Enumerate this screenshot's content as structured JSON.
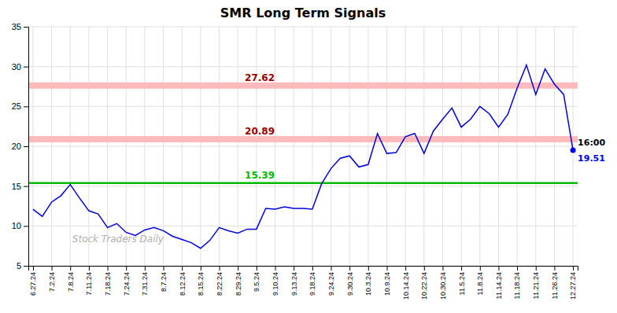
{
  "chart_data": {
    "type": "line",
    "title": "SMR Long Term Signals",
    "categories": [
      "6.27.24",
      null,
      "7.2.24",
      null,
      "7.8.24",
      null,
      "7.11.24",
      null,
      "7.18.24",
      null,
      "7.24.24",
      null,
      "7.31.24",
      null,
      "8.7.24",
      null,
      "8.12.24",
      null,
      "8.15.24",
      null,
      "8.22.24",
      null,
      "8.29.24",
      null,
      "9.5.24",
      null,
      "9.10.24",
      null,
      "9.13.24",
      null,
      "9.18.24",
      null,
      "9.24.24",
      null,
      "9.30.24",
      null,
      "10.3.24",
      null,
      "10.9.24",
      null,
      "10.14.24",
      null,
      "10.22.24",
      null,
      "10.30.24",
      null,
      "11.5.24",
      null,
      "11.8.24",
      null,
      "11.14.24",
      null,
      "11.18.24",
      null,
      "11.21.24",
      null,
      "11.26.24",
      null,
      "12.27.24"
    ],
    "values": [
      12.1,
      11.2,
      13.0,
      13.8,
      15.2,
      13.5,
      11.9,
      11.5,
      9.8,
      10.3,
      9.2,
      8.8,
      9.5,
      9.8,
      9.4,
      8.7,
      8.3,
      7.9,
      7.2,
      8.2,
      9.8,
      9.4,
      9.1,
      9.6,
      9.6,
      12.2,
      12.1,
      12.4,
      12.2,
      12.2,
      12.1,
      15.3,
      17.2,
      18.5,
      18.8,
      17.4,
      17.7,
      21.6,
      19.1,
      19.2,
      21.2,
      21.6,
      19.1,
      21.9,
      23.4,
      24.8,
      22.4,
      23.4,
      25.0,
      24.1,
      22.4,
      24.0,
      27.3,
      30.2,
      26.5,
      29.7,
      27.8,
      26.5,
      19.51
    ],
    "color": "#0000dd",
    "hlines": [
      {
        "value": 27.62,
        "color": "#ffbbbb",
        "label_color": "#990000"
      },
      {
        "value": 20.89,
        "color": "#ffbbbb",
        "label_color": "#990000"
      },
      {
        "value": 15.39,
        "color": "#00bb00",
        "label_color": "#00bb00"
      }
    ],
    "end_point": {
      "value": 19.51,
      "color": "#0000ff"
    },
    "annotations": [
      "16:00"
    ],
    "watermark": "Stock Traders Daily",
    "ylim": [
      5,
      35
    ],
    "yticks": [
      5,
      10,
      15,
      20,
      25,
      30,
      35
    ],
    "grid": true
  }
}
